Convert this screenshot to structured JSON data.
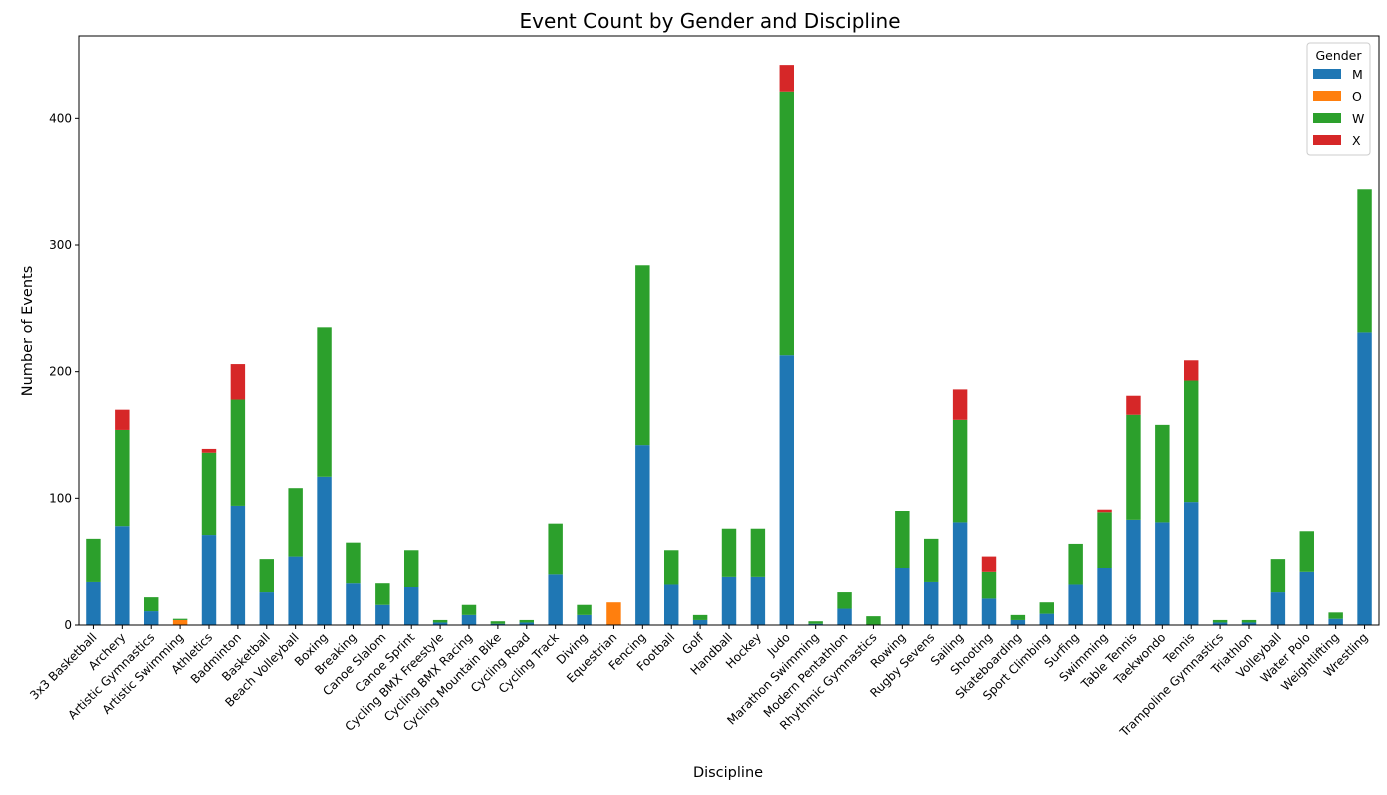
{
  "chart_data": {
    "type": "bar",
    "stacked": true,
    "title": "Event Count by Gender and Discipline",
    "xlabel": "Discipline",
    "ylabel": "Number of Events",
    "ylim": [
      0,
      465
    ],
    "yticks": [
      0,
      100,
      200,
      300,
      400
    ],
    "grid": false,
    "legend": {
      "title": "Gender",
      "placement": "top-right"
    },
    "categories": [
      "3x3 Basketball",
      "Archery",
      "Artistic Gymnastics",
      "Artistic Swimming",
      "Athletics",
      "Badminton",
      "Basketball",
      "Beach Volleyball",
      "Boxing",
      "Breaking",
      "Canoe Slalom",
      "Canoe Sprint",
      "Cycling BMX Freestyle",
      "Cycling BMX Racing",
      "Cycling Mountain Bike",
      "Cycling Road",
      "Cycling Track",
      "Diving",
      "Equestrian",
      "Fencing",
      "Football",
      "Golf",
      "Handball",
      "Hockey",
      "Judo",
      "Marathon Swimming",
      "Modern Pentathlon",
      "Rhythmic Gymnastics",
      "Rowing",
      "Rugby Sevens",
      "Sailing",
      "Shooting",
      "Skateboarding",
      "Sport Climbing",
      "Surfing",
      "Swimming",
      "Table Tennis",
      "Taekwondo",
      "Tennis",
      "Trampoline Gymnastics",
      "Triathlon",
      "Volleyball",
      "Water Polo",
      "Weightlifting",
      "Wrestling"
    ],
    "series": [
      {
        "name": "M",
        "color": "#1f77b4",
        "values": [
          34,
          78,
          11,
          0,
          71,
          94,
          26,
          54,
          117,
          33,
          16,
          30,
          2,
          8,
          1,
          2,
          40,
          8,
          0,
          142,
          32,
          4,
          38,
          38,
          213,
          1,
          13,
          0,
          45,
          34,
          81,
          21,
          4,
          9,
          32,
          45,
          83,
          81,
          97,
          2,
          2,
          26,
          42,
          5,
          231
        ]
      },
      {
        "name": "O",
        "color": "#ff7f0e",
        "values": [
          0,
          0,
          0,
          4,
          0,
          0,
          0,
          0,
          0,
          0,
          0,
          0,
          0,
          0,
          0,
          0,
          0,
          0,
          18,
          0,
          0,
          0,
          0,
          0,
          0,
          0,
          0,
          0,
          0,
          0,
          0,
          0,
          0,
          0,
          0,
          0,
          0,
          0,
          0,
          0,
          0,
          0,
          0,
          0,
          0
        ]
      },
      {
        "name": "W",
        "color": "#2ca02c",
        "values": [
          34,
          76,
          11,
          1,
          65,
          84,
          26,
          54,
          118,
          32,
          17,
          29,
          2,
          8,
          2,
          2,
          40,
          8,
          0,
          142,
          27,
          4,
          38,
          38,
          208,
          2,
          13,
          7,
          45,
          34,
          81,
          21,
          4,
          9,
          32,
          44,
          83,
          77,
          96,
          2,
          2,
          26,
          32,
          5,
          113
        ]
      },
      {
        "name": "X",
        "color": "#d62728",
        "values": [
          0,
          16,
          0,
          0,
          3,
          28,
          0,
          0,
          0,
          0,
          0,
          0,
          0,
          0,
          0,
          0,
          0,
          0,
          0,
          0,
          0,
          0,
          0,
          0,
          21,
          0,
          0,
          0,
          0,
          0,
          24,
          12,
          0,
          0,
          0,
          2,
          15,
          0,
          16,
          0,
          0,
          0,
          0,
          0,
          0
        ]
      }
    ]
  }
}
